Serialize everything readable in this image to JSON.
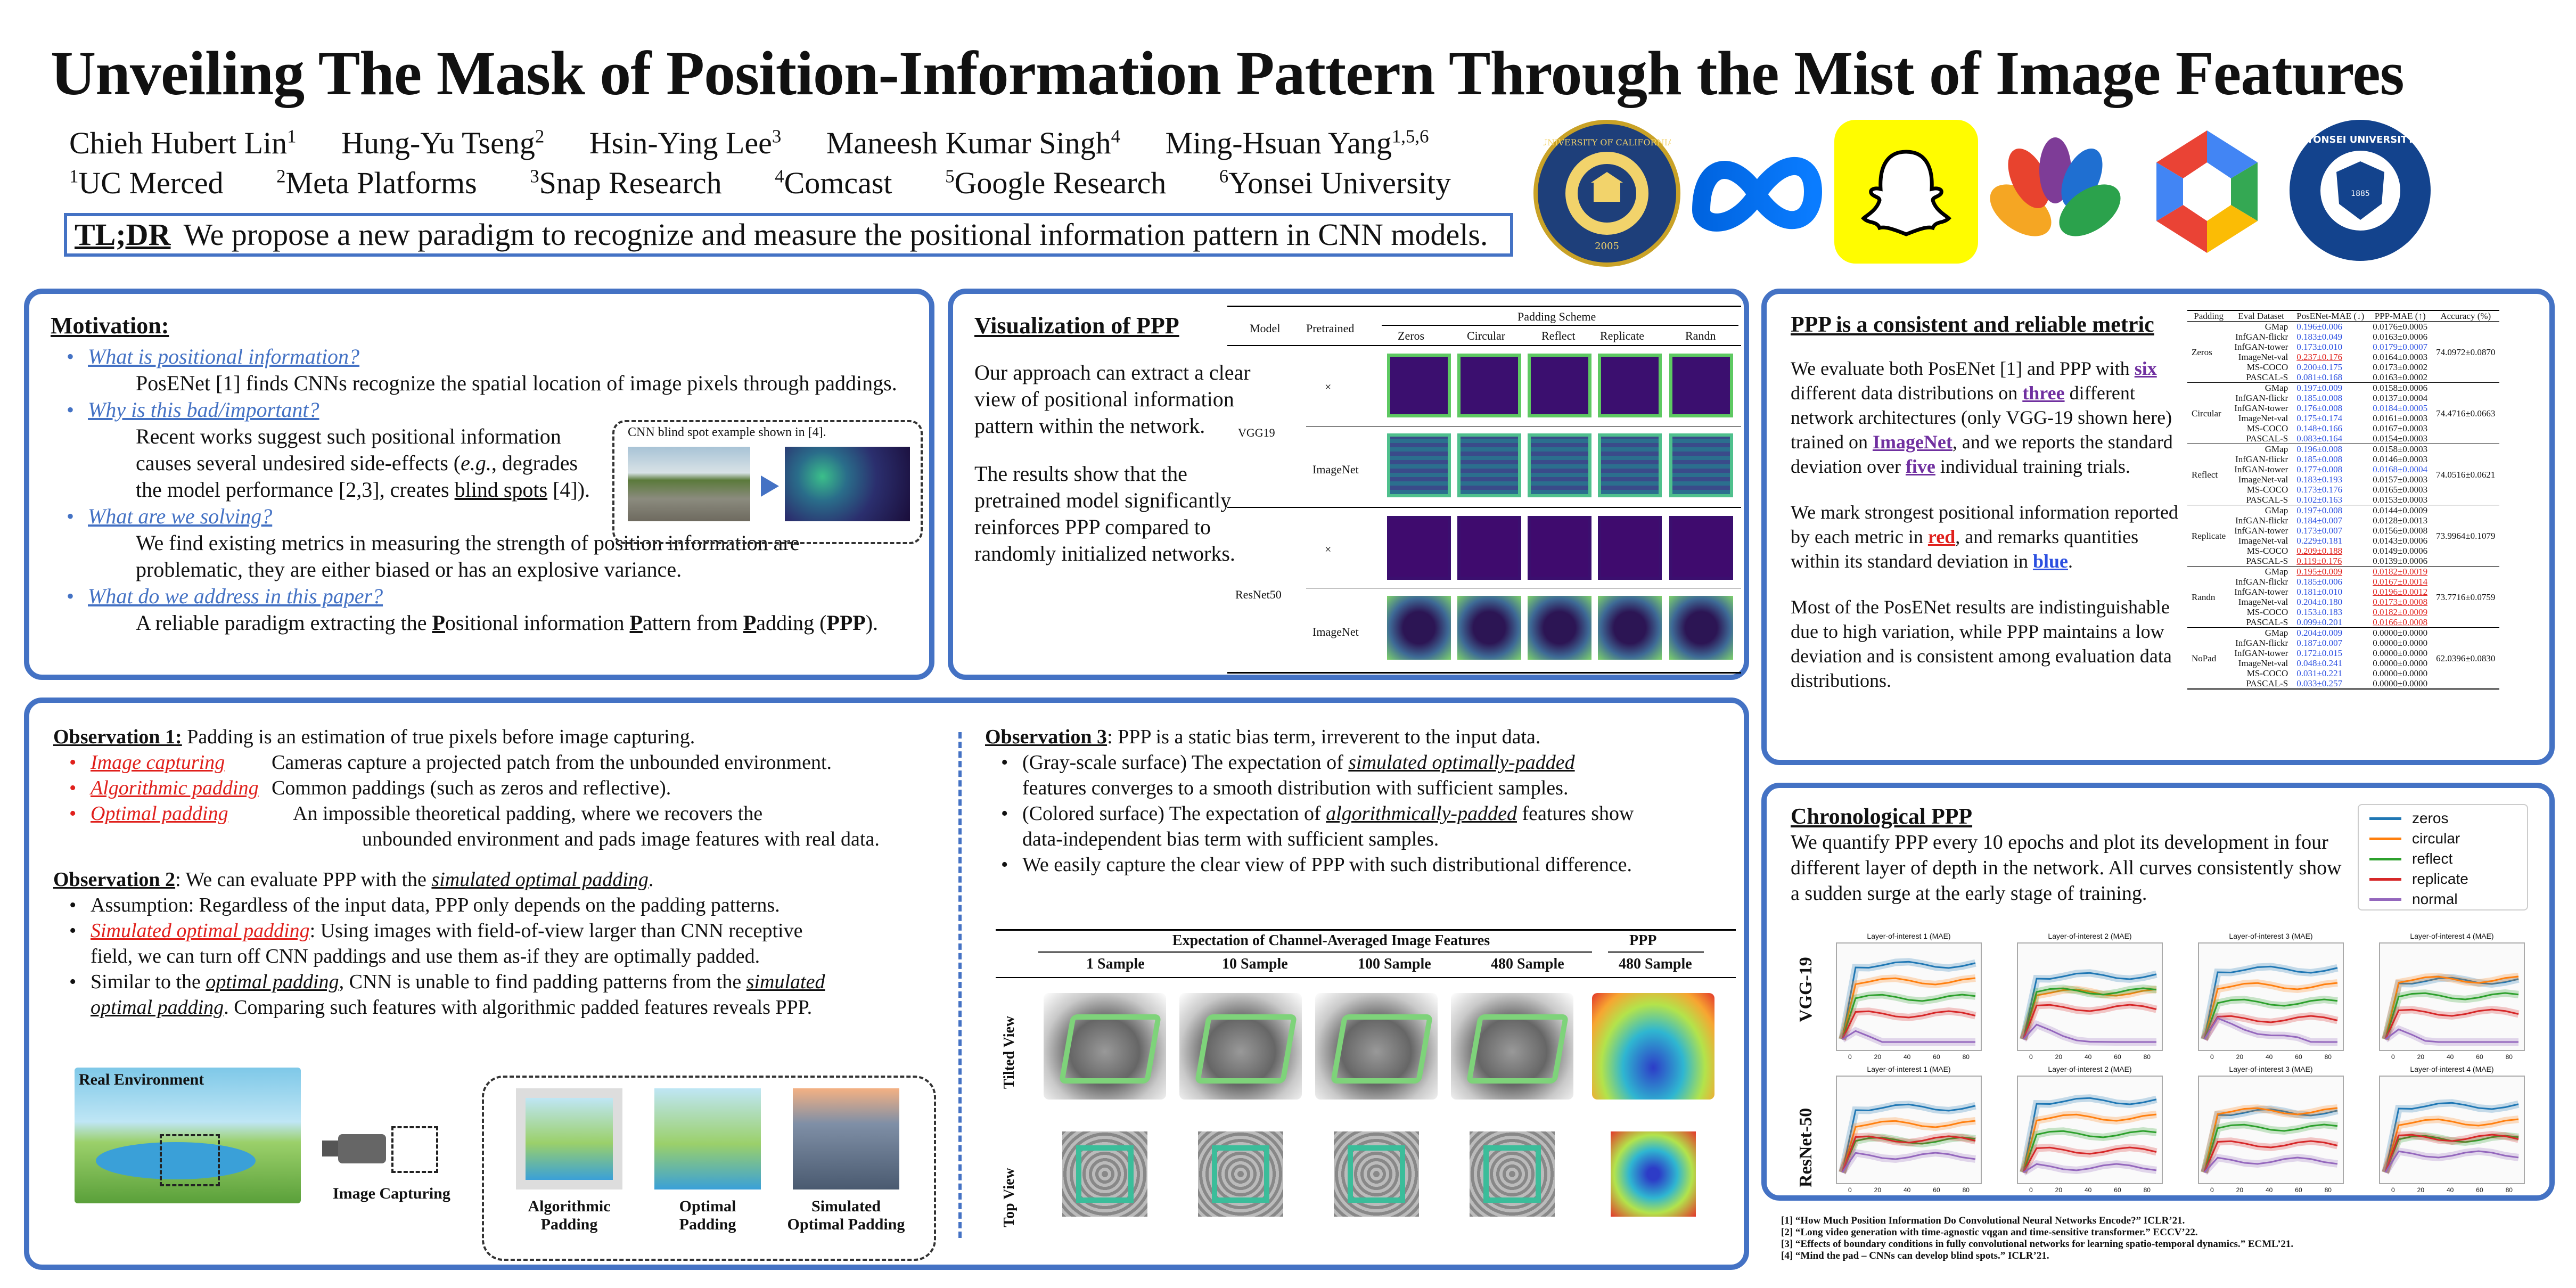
{
  "title": "Unveiling The Mask of Position-Information Pattern Through the Mist of Image Features",
  "authors": [
    {
      "name": "Chieh Hubert Lin",
      "sup": "1"
    },
    {
      "name": "Hung-Yu Tseng",
      "sup": "2"
    },
    {
      "name": "Hsin-Ying Lee",
      "sup": "3"
    },
    {
      "name": "Maneesh Kumar Singh",
      "sup": "4"
    },
    {
      "name": "Ming-Hsuan Yang",
      "sup": "1,5,6"
    }
  ],
  "affiliations": [
    {
      "sup": "1",
      "name": "UC Merced"
    },
    {
      "sup": "2",
      "name": "Meta Platforms"
    },
    {
      "sup": "3",
      "name": "Snap Research"
    },
    {
      "sup": "4",
      "name": "Comcast"
    },
    {
      "sup": "5",
      "name": "Google Research"
    },
    {
      "sup": "6",
      "name": "Yonsei University"
    }
  ],
  "tldr": {
    "label": "TL;DR",
    "text": "We propose a new paradigm to recognize and measure the positional information pattern in CNN models."
  },
  "logos": {
    "uc": "UNIVERSITY OF CALIFORNIA",
    "uc_year": "2005",
    "yonsei": "YONSEI UNIVERSITY",
    "yonsei_year": "1885"
  },
  "motivation": {
    "heading": "Motivation:",
    "q1": "What is positional information?",
    "a1": "PosENet [1] finds CNNs recognize the spatial location of image pixels through paddings.",
    "q2": "Why is this bad/important?",
    "a2a": "Recent works suggest such positional information",
    "a2b_pre": "causes several undesired side-effects (",
    "a2b_eg": "e.g.",
    "a2b_post": ", degrades",
    "a2c_pre": "the model performance [2,3], creates ",
    "a2c_u": "blind spots",
    "a2c_post": " [4]).",
    "blind_caption": "CNN blind spot example shown in [4].",
    "q3": "What are we solving?",
    "a3a": "We find existing metrics in measuring the strength of position information are",
    "a3b": "problematic, they are either biased or has an explosive variance.",
    "q4": "What do we address in this paper?",
    "a4_pre": "A reliable paradigm extracting the ",
    "a4_p1": "P",
    "a4_w1": "ositional information ",
    "a4_p2": "P",
    "a4_w2": "attern from ",
    "a4_p3": "P",
    "a4_w3": "adding (",
    "a4_ppp": "PPP",
    "a4_end": ")."
  },
  "visualization": {
    "heading": "Visualization of PPP",
    "p1": "Our approach can extract a clear view of positional information pattern within the network.",
    "p2": "The results show that the pretrained model significantly reinforces PPP compared to randomly initialized networks.",
    "col_model": "Model",
    "col_pretrained": "Pretrained",
    "col_padding": "Padding Scheme",
    "schemes": [
      "Zeros",
      "Circular",
      "Reflect",
      "Replicate",
      "Randn"
    ],
    "models": [
      "VGG19",
      "ResNet50"
    ],
    "pre_none": "×",
    "pre_imagenet": "ImageNet"
  },
  "obs1": {
    "heading": "Observation 1:",
    "text": " Padding is an estimation of true pixels before image capturing.",
    "items": [
      {
        "term": "Image capturing",
        "desc": "Cameras capture a projected patch from the unbounded environment."
      },
      {
        "term": "Algorithmic padding",
        "desc": "Common paddings (such as zeros and reflective)."
      },
      {
        "term": "Optimal padding",
        "desc": "An impossible theoretical padding, where we recovers the"
      }
    ],
    "item3b": "unbounded environment and pads image features with real data."
  },
  "obs2": {
    "heading": "Observation 2",
    "text": ": We can evaluate PPP with the ",
    "text_i": "simulated optimal padding",
    "text_end": ".",
    "b1": "Assumption: Regardless of the input data, PPP only depends on the padding patterns.",
    "b2_term": "Simulated optimal padding",
    "b2a": ": Using images with field-of-view larger than CNN receptive",
    "b2b": "field, we can turn off CNN paddings and use them as-if they are optimally padded.",
    "b3_pre": "Similar to the ",
    "b3_i1": "optimal padding",
    "b3_mid": ", CNN is unable to find padding patterns from the ",
    "b3_i2": "simulated",
    "b3b_i": "optimal padding",
    "b3b": ". Comparing such features with algorithmic padded features reveals PPP."
  },
  "illustration": {
    "real_env": "Real Environment",
    "capture": "Image Capturing",
    "algo": "Algorithmic Padding",
    "opt": "Optimal Padding",
    "sim": "Simulated Optimal Padding"
  },
  "obs3": {
    "heading": "Observation 3",
    "text": ": PPP is a static bias term, irreverent to the input data.",
    "b1_pre": "(Gray-scale surface) The expectation of ",
    "b1_i": "simulated optimally-padded",
    "b1b": "features converges to a smooth distribution with sufficient samples.",
    "b2_pre": "(Colored surface) The expectation of ",
    "b2_i": "algorithmically-padded",
    "b2_post": " features show",
    "b2b": "data-independent bias term with sufficient samples.",
    "b3": "We easily capture the clear view of PPP with such distributional difference.",
    "fig_header": "Expectation of Channel-Averaged Image Features",
    "fig_ppp": "PPP",
    "samples": [
      "1 Sample",
      "10 Sample",
      "100 Sample",
      "480 Sample",
      "480 Sample"
    ],
    "row_tilted": "Tilted View",
    "row_top": "Top View"
  },
  "consistent": {
    "heading": "PPP is a consistent and reliable metric",
    "p1_pre": "We evaluate both PosENet [1] and PPP with ",
    "p1_six": "six",
    "p1_mid": " different data distributions on ",
    "p1_three": "three",
    "p1_mid2": " different network architectures (only VGG-19 shown here) trained on ",
    "p1_imagenet": "ImageNet",
    "p1_mid3": ", and we reports the standard deviation over ",
    "p1_five": "five",
    "p1_end": " individual training trials.",
    "p2_pre": "We mark strongest positional information reported by each metric in ",
    "p2_red": "red",
    "p2_mid": ", and remarks quantities within its standard deviation in ",
    "p2_blue": "blue",
    "p2_end": ".",
    "p3": "Most of the PosENet results are indistinguishable due to high variation, while PPP maintains a low deviation and is consistent among evaluation data distributions."
  },
  "table": {
    "headers": [
      "Padding",
      "Eval Dataset",
      "PosENet-MAE (↓)",
      "PPP-MAE (↑)",
      "Accuracy (%)"
    ],
    "datasets": [
      "GMap",
      "InfGAN-flickr",
      "InfGAN-tower",
      "ImageNet-val",
      "MS-COCO",
      "PASCAL-S"
    ],
    "groups": [
      {
        "padding": "Zeros",
        "acc": "74.0972±0.0870",
        "posenet": [
          "0.196±0.006",
          "0.183±0.049",
          "0.173±0.010",
          "0.237±0.176",
          "0.200±0.175",
          "0.081±0.168"
        ],
        "ppp": [
          "0.0176±0.0005",
          "0.0163±0.0006",
          "0.0179±0.0007",
          "0.0164±0.0003",
          "0.0173±0.0002",
          "0.0163±0.0002"
        ]
      },
      {
        "padding": "Circular",
        "acc": "74.4716±0.0663",
        "posenet": [
          "0.197±0.009",
          "0.185±0.008",
          "0.176±0.008",
          "0.175±0.174",
          "0.148±0.166",
          "0.083±0.164"
        ],
        "ppp": [
          "0.0158±0.0006",
          "0.0137±0.0004",
          "0.0184±0.0005",
          "0.0161±0.0003",
          "0.0167±0.0003",
          "0.0154±0.0003"
        ]
      },
      {
        "padding": "Reflect",
        "acc": "74.0516±0.0621",
        "posenet": [
          "0.196±0.008",
          "0.185±0.008",
          "0.177±0.008",
          "0.183±0.193",
          "0.173±0.176",
          "0.102±0.163"
        ],
        "ppp": [
          "0.0158±0.0003",
          "0.0146±0.0003",
          "0.0168±0.0004",
          "0.0157±0.0003",
          "0.0165±0.0003",
          "0.0153±0.0003"
        ]
      },
      {
        "padding": "Replicate",
        "acc": "73.9964±0.1079",
        "posenet": [
          "0.197±0.008",
          "0.184±0.007",
          "0.173±0.007",
          "0.229±0.181",
          "0.209±0.188",
          "0.119±0.176"
        ],
        "ppp": [
          "0.0144±0.0009",
          "0.0128±0.0013",
          "0.0156±0.0008",
          "0.0143±0.0006",
          "0.0149±0.0006",
          "0.0139±0.0006"
        ]
      },
      {
        "padding": "Randn",
        "acc": "73.7716±0.0759",
        "posenet": [
          "0.195±0.009",
          "0.185±0.006",
          "0.181±0.010",
          "0.204±0.180",
          "0.153±0.183",
          "0.099±0.201"
        ],
        "ppp": [
          "0.0182±0.0019",
          "0.0167±0.0014",
          "0.0196±0.0012",
          "0.0173±0.0008",
          "0.0182±0.0009",
          "0.0166±0.0008"
        ]
      },
      {
        "padding": "NoPad",
        "acc": "62.0396±0.0830",
        "posenet": [
          "0.204±0.009",
          "0.187±0.007",
          "0.172±0.015",
          "0.048±0.241",
          "0.031±0.221",
          "0.033±0.257"
        ],
        "ppp": [
          "0.0000±0.0000",
          "0.0000±0.0000",
          "0.0000±0.0000",
          "0.0000±0.0000",
          "0.0000±0.0000",
          "0.0000±0.0000"
        ]
      }
    ]
  },
  "chrono": {
    "heading": "Chronological PPP",
    "text": "We quantify PPP every 10 epochs and plot its development in four different layer of depth in the network. All curves consistently show a sudden surge at the early stage of training.",
    "legend": [
      {
        "name": "zeros",
        "color": "#1f77b4"
      },
      {
        "name": "circular",
        "color": "#ff7f0e"
      },
      {
        "name": "reflect",
        "color": "#2ca02c"
      },
      {
        "name": "replicate",
        "color": "#d62728"
      },
      {
        "name": "normal",
        "color": "#9467bd"
      }
    ],
    "rows": [
      "VGG-19",
      "ResNet-50"
    ],
    "plot_titles": [
      "Layer-of-interest 1 (MAE)",
      "Layer-of-interest 2 (MAE)",
      "Layer-of-interest 3 (MAE)",
      "Layer-of-interest 4 (MAE)"
    ],
    "xticks": [
      "0",
      "20",
      "40",
      "60",
      "80"
    ]
  },
  "references": [
    "[1] “How Much Position Information Do Convolutional Neural Networks Encode?” ICLR’21.",
    "[2] “Long video generation with time-agnostic vqgan and time-sensitive transformer.” ECCV’22.",
    "[3] “Effects of boundary conditions in fully convolutional networks for learning spatio-temporal dynamics.” ECML’21.",
    "[4] “Mind the pad – CNNs can develop blind spots.” ICLR’21."
  ]
}
